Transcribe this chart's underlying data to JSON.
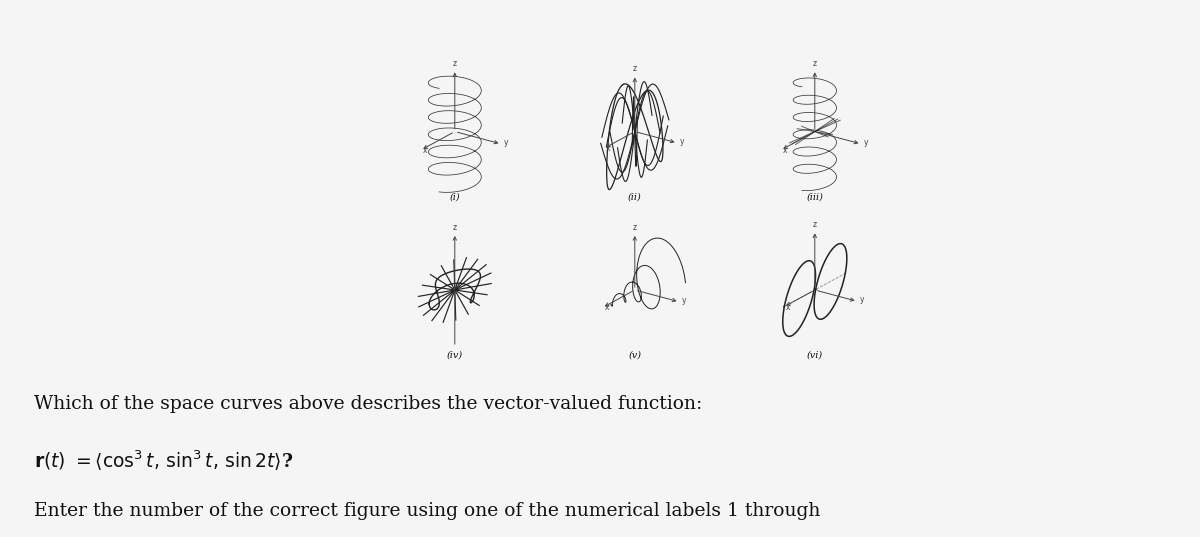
{
  "bg_color": "#f5f5f5",
  "fig_bg": "#f5f5f5",
  "question_line1": "Which of the space curves above describes the vector-valued function:",
  "question_line2": "r(t) = ⟨cos³ t, sin³ t, sin 2t⟩?",
  "question_line3": "Enter the number of the correct figure using one of the numerical labels 1 through",
  "labels": [
    "(i)",
    "(ii)",
    "(iii)",
    "(iv)",
    "(v)",
    "(vi)"
  ],
  "text_color": "#111111",
  "axis_color": "#444444",
  "curve_color": "#222222",
  "label_fontsize": 7,
  "axis_label_fontsize": 5.5
}
